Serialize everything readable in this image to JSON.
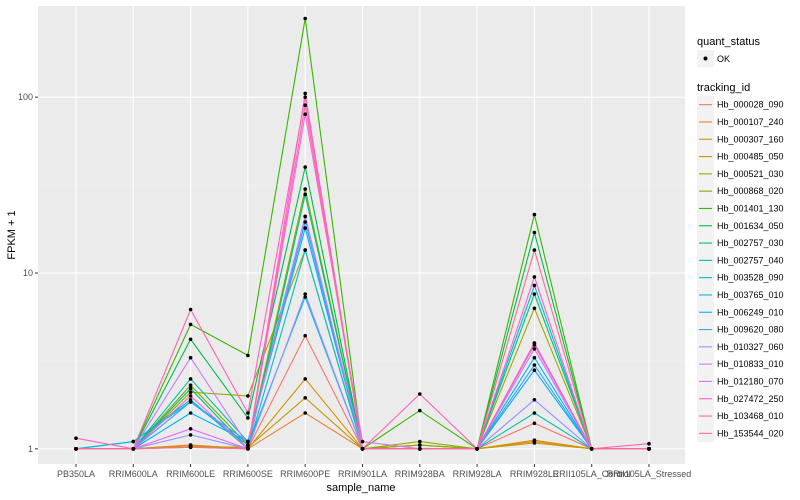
{
  "chart_data": {
    "type": "line",
    "xlabel": "sample_name",
    "ylabel": "FPKM + 1",
    "y_scale": "log10",
    "ylim": [
      0.82,
      330
    ],
    "yticks": [
      1,
      10,
      100
    ],
    "ytick_labels": [
      "1",
      "10",
      "100"
    ],
    "grid": true,
    "legend_position": "right",
    "categories": [
      "PB350LA",
      "RRIM600LA",
      "RRIM600LE",
      "RRIM600SE",
      "RRIM600PE",
      "RRIM901LA",
      "RRIM928BA",
      "RRIM928LA",
      "RRIM928LE",
      "RRII105LA_Control",
      "RRII105LA_Stressed"
    ],
    "shape_legend": {
      "title": "quant_status",
      "items": [
        "OK"
      ]
    },
    "color_legend_title": "tracking_id",
    "series": [
      {
        "name": "Hb_000028_090",
        "color": "#F8766D",
        "values": [
          1.0,
          1.0,
          1.05,
          1.0,
          4.4,
          1.0,
          1.0,
          1.0,
          1.4,
          1.0,
          1.0
        ]
      },
      {
        "name": "Hb_000107_240",
        "color": "#EA8331",
        "values": [
          1.0,
          1.0,
          1.02,
          1.0,
          1.6,
          1.0,
          1.0,
          1.0,
          1.1,
          1.0,
          1.0
        ]
      },
      {
        "name": "Hb_000307_160",
        "color": "#D89000",
        "values": [
          1.0,
          1.0,
          1.05,
          1.0,
          2.5,
          1.0,
          1.05,
          1.0,
          1.12,
          1.0,
          1.0
        ]
      },
      {
        "name": "Hb_000485_050",
        "color": "#C09B00",
        "values": [
          1.0,
          1.0,
          1.03,
          1.02,
          1.95,
          1.0,
          1.0,
          1.0,
          1.08,
          1.0,
          1.0
        ]
      },
      {
        "name": "Hb_000521_030",
        "color": "#A3A500",
        "values": [
          1.0,
          1.0,
          2.1,
          2.0,
          13.5,
          1.0,
          1.1,
          1.0,
          6.3,
          1.0,
          1.0
        ]
      },
      {
        "name": "Hb_000868_020",
        "color": "#7CAE00",
        "values": [
          1.0,
          1.0,
          2.3,
          1.05,
          30.0,
          1.0,
          1.05,
          1.0,
          4.0,
          1.0,
          1.0
        ]
      },
      {
        "name": "Hb_001401_130",
        "color": "#39B600",
        "values": [
          1.0,
          1.0,
          5.1,
          3.4,
          280.0,
          1.0,
          1.65,
          1.0,
          21.5,
          1.0,
          1.0
        ]
      },
      {
        "name": "Hb_001634_050",
        "color": "#00BB4E",
        "values": [
          1.0,
          1.0,
          4.2,
          1.5,
          40.0,
          1.0,
          1.0,
          1.0,
          17.0,
          1.0,
          1.0
        ]
      },
      {
        "name": "Hb_002757_030",
        "color": "#00BF7D",
        "values": [
          1.0,
          1.0,
          2.2,
          1.0,
          28.0,
          1.0,
          1.0,
          1.0,
          7.6,
          1.0,
          1.0
        ]
      },
      {
        "name": "Hb_002757_040",
        "color": "#00C1A3",
        "values": [
          1.0,
          1.0,
          2.5,
          1.1,
          21.0,
          1.0,
          1.0,
          1.0,
          1.6,
          1.0,
          1.0
        ]
      },
      {
        "name": "Hb_003528_090",
        "color": "#00BFC4",
        "values": [
          1.0,
          1.1,
          1.9,
          1.0,
          13.5,
          1.0,
          1.0,
          1.0,
          8.5,
          1.0,
          1.0
        ]
      },
      {
        "name": "Hb_003765_010",
        "color": "#00BAE0",
        "values": [
          1.0,
          1.1,
          1.85,
          1.05,
          7.3,
          1.0,
          1.0,
          1.0,
          3.3,
          1.0,
          1.0
        ]
      },
      {
        "name": "Hb_006249_010",
        "color": "#00B0F6",
        "values": [
          1.0,
          1.0,
          1.6,
          1.1,
          18.0,
          1.0,
          1.0,
          1.0,
          2.8,
          1.0,
          1.0
        ]
      },
      {
        "name": "Hb_009620_080",
        "color": "#35A2FF",
        "values": [
          1.0,
          1.0,
          1.85,
          1.1,
          19.5,
          1.0,
          1.0,
          1.0,
          3.0,
          1.0,
          1.0
        ]
      },
      {
        "name": "Hb_010327_060",
        "color": "#9590FF",
        "values": [
          1.0,
          1.0,
          1.2,
          1.0,
          7.6,
          1.0,
          1.0,
          1.0,
          1.9,
          1.0,
          1.0
        ]
      },
      {
        "name": "Hb_010833_010",
        "color": "#C77CFF",
        "values": [
          1.0,
          1.0,
          3.3,
          1.05,
          21.0,
          1.0,
          1.0,
          1.0,
          3.7,
          1.0,
          1.0
        ]
      },
      {
        "name": "Hb_012180_070",
        "color": "#E76BF3",
        "values": [
          1.0,
          1.0,
          1.3,
          1.0,
          80.0,
          1.1,
          1.0,
          1.0,
          3.9,
          1.0,
          1.0
        ]
      },
      {
        "name": "Hb_027472_250",
        "color": "#FA62DB",
        "values": [
          1.0,
          1.0,
          2.0,
          1.0,
          105.0,
          1.0,
          1.0,
          1.0,
          9.5,
          1.0,
          1.0
        ]
      },
      {
        "name": "Hb_103468_010",
        "color": "#FF62BC",
        "values": [
          1.15,
          1.0,
          6.2,
          1.6,
          100.0,
          1.0,
          2.05,
          1.0,
          4.0,
          1.0,
          1.07
        ]
      },
      {
        "name": "Hb_153544_020",
        "color": "#FF6C91",
        "values": [
          1.0,
          1.0,
          1.02,
          1.0,
          90.0,
          1.0,
          1.0,
          1.0,
          13.5,
          1.0,
          1.0
        ]
      }
    ]
  }
}
